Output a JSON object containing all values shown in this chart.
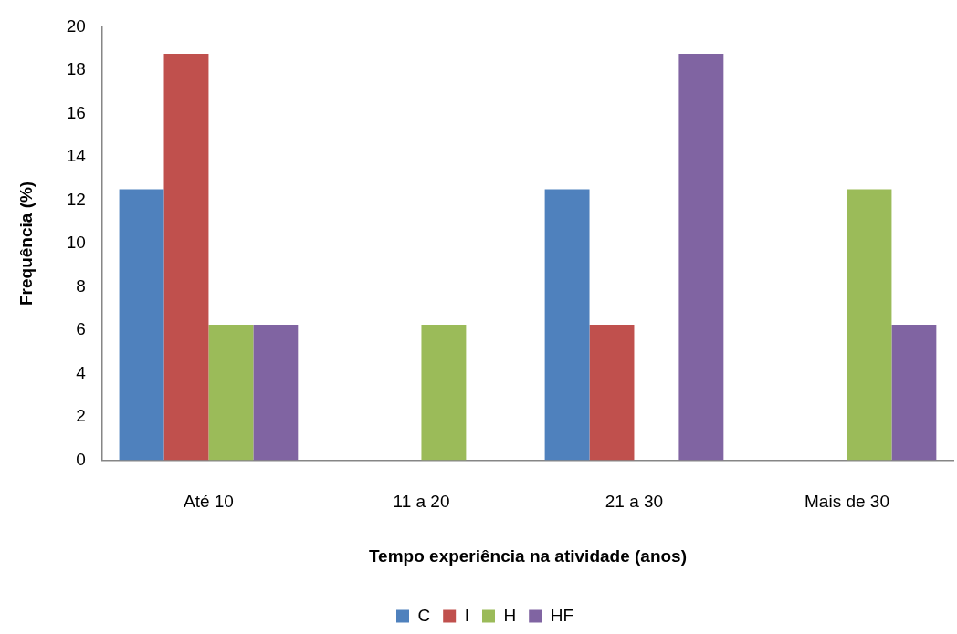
{
  "chart_data": {
    "type": "bar",
    "xlabel": "Tempo experiência na atividade (anos)",
    "ylabel": "Frequência (%)",
    "categories": [
      "Até 10",
      "11 a 20",
      "21 a 30",
      "Mais de 30"
    ],
    "series": [
      {
        "name": "C",
        "color": "#4f81bd",
        "values": [
          12.5,
          0,
          12.5,
          0
        ]
      },
      {
        "name": "I",
        "color": "#c0504d",
        "values": [
          18.75,
          0,
          6.25,
          0
        ]
      },
      {
        "name": "H",
        "color": "#9bbb59",
        "values": [
          6.25,
          6.25,
          0,
          12.5
        ]
      },
      {
        "name": "HF",
        "color": "#8064a2",
        "values": [
          6.25,
          0,
          18.75,
          6.25
        ]
      }
    ],
    "ylim": [
      0,
      20
    ],
    "yticks": [
      0,
      2,
      4,
      6,
      8,
      10,
      12,
      14,
      16,
      18,
      20
    ],
    "legend": "bottom"
  }
}
